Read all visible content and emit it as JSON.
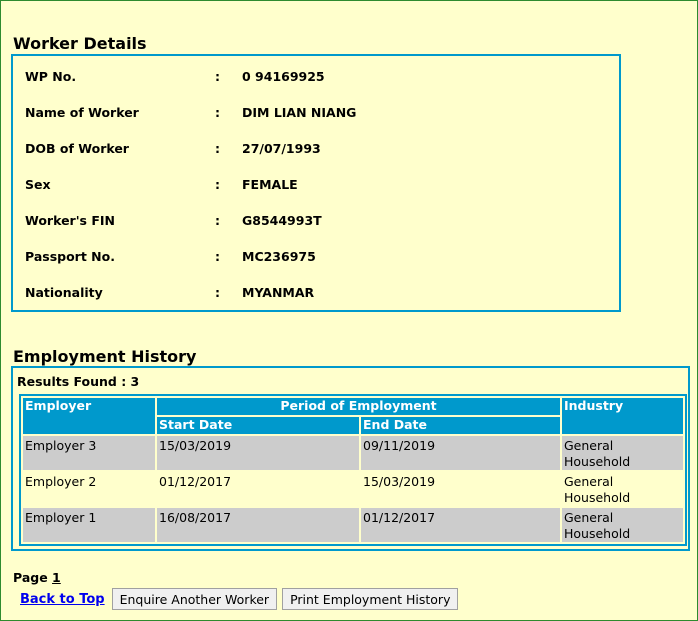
{
  "worker": {
    "title": "Worker Details",
    "separator": ":",
    "fields": [
      {
        "label": "WP No.",
        "value": "0 94169925"
      },
      {
        "label": "Name of Worker",
        "value": "DIM LIAN NIANG"
      },
      {
        "label": "DOB of Worker",
        "value": "27/07/1993"
      },
      {
        "label": "Sex",
        "value": "FEMALE"
      },
      {
        "label": "Worker's FIN",
        "value": "G8544993T"
      },
      {
        "label": "Passport No.",
        "value": "MC236975"
      },
      {
        "label": "Nationality",
        "value": "MYANMAR"
      }
    ]
  },
  "history": {
    "title": "Employment History",
    "results": "Results Found : 3",
    "headers": {
      "employer": "Employer",
      "period": "Period of Employment",
      "start": "Start Date",
      "end": "End Date",
      "industry": "Industry"
    },
    "rows": [
      {
        "employer": "Employer 3",
        "start": "15/03/2019",
        "end": "09/11/2019",
        "industry": "General Household"
      },
      {
        "employer": "Employer 2",
        "start": "01/12/2017",
        "end": "15/03/2019",
        "industry": "General Household"
      },
      {
        "employer": "Employer 1",
        "start": "16/08/2017",
        "end": "01/12/2017",
        "industry": "General Household"
      }
    ]
  },
  "footer": {
    "page_label": "Page",
    "page_num": "1",
    "back_to_top": "Back to Top",
    "enquire": "Enquire Another Worker",
    "print": "Print Employment History"
  },
  "colors": {
    "background": "#ffffcc",
    "accent": "#0099cc",
    "row_alt": "#cccccc"
  }
}
